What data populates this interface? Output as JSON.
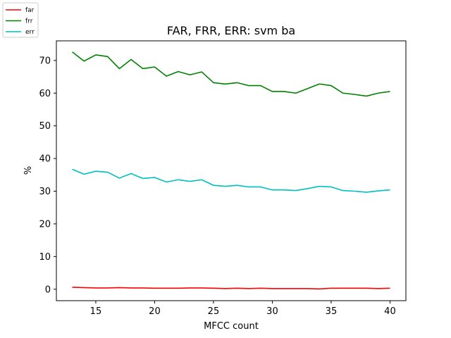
{
  "chart_data": {
    "type": "line",
    "title": "FAR, FRR, ERR: svm ba",
    "xlabel": "MFCC count",
    "ylabel": "%",
    "xlim": [
      11.65,
      41.35
    ],
    "ylim": [
      -3.5,
      76.0
    ],
    "xticks": [
      15,
      20,
      25,
      30,
      35,
      40
    ],
    "yticks": [
      0,
      10,
      20,
      30,
      40,
      50,
      60,
      70
    ],
    "grid": false,
    "legend": "outside-top-left",
    "x": [
      13,
      14,
      15,
      16,
      17,
      18,
      19,
      20,
      21,
      22,
      23,
      24,
      25,
      26,
      27,
      28,
      29,
      30,
      31,
      32,
      33,
      34,
      35,
      36,
      37,
      38,
      39,
      40
    ],
    "series": [
      {
        "name": "far",
        "color": "#ff0000",
        "values": [
          0.6,
          0.5,
          0.4,
          0.4,
          0.5,
          0.4,
          0.4,
          0.3,
          0.3,
          0.3,
          0.4,
          0.4,
          0.3,
          0.2,
          0.3,
          0.2,
          0.3,
          0.2,
          0.2,
          0.2,
          0.2,
          0.1,
          0.3,
          0.3,
          0.3,
          0.3,
          0.2,
          0.3
        ]
      },
      {
        "name": "frr",
        "color": "#008000",
        "values": [
          72.6,
          69.8,
          71.7,
          71.2,
          67.5,
          70.3,
          67.5,
          68.0,
          65.2,
          66.6,
          65.6,
          66.5,
          63.2,
          62.8,
          63.2,
          62.3,
          62.3,
          60.5,
          60.5,
          60.0,
          61.4,
          62.8,
          62.3,
          60.0,
          59.6,
          59.1,
          60.0,
          60.5
        ]
      },
      {
        "name": "err",
        "color": "#00bfbf",
        "values": [
          36.7,
          35.2,
          36.1,
          35.8,
          34.0,
          35.4,
          33.9,
          34.2,
          32.8,
          33.5,
          33.0,
          33.5,
          31.8,
          31.5,
          31.8,
          31.3,
          31.3,
          30.4,
          30.4,
          30.2,
          30.8,
          31.5,
          31.3,
          30.2,
          30.0,
          29.7,
          30.1,
          30.4
        ]
      }
    ]
  }
}
